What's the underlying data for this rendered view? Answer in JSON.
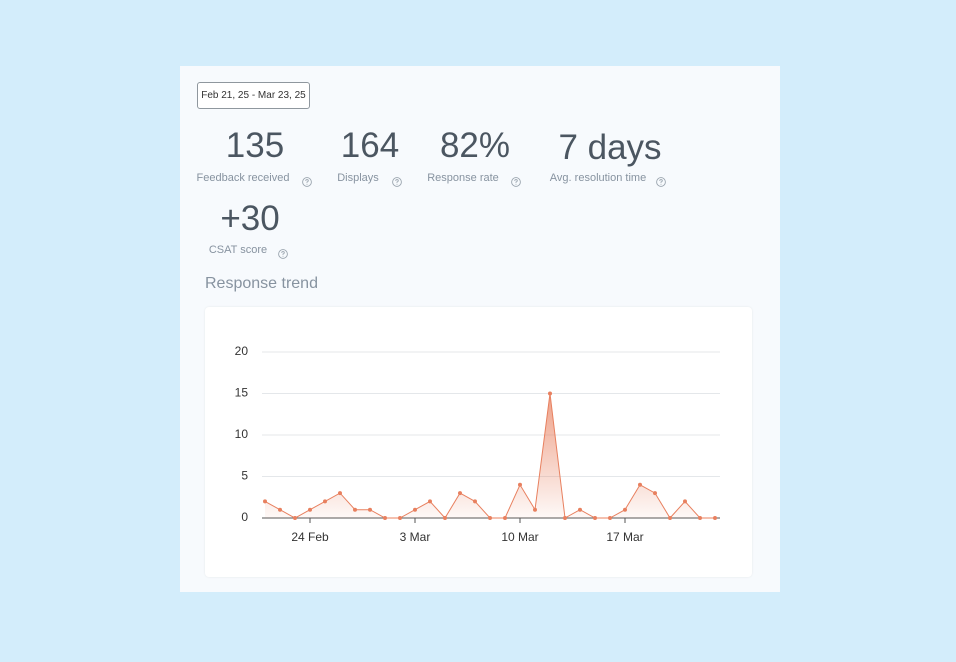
{
  "date_range": "Feb 21, 25 - Mar 23, 25",
  "metrics": [
    {
      "value": "135",
      "label": "Feedback received"
    },
    {
      "value": "164",
      "label": "Displays"
    },
    {
      "value": "82%",
      "label": "Response rate"
    },
    {
      "value": "7 days",
      "label": "Avg. resolution time"
    },
    {
      "value": "+30",
      "label": "CSAT score"
    }
  ],
  "chart_data": {
    "type": "area",
    "title": "Response trend",
    "categories": [
      null,
      null,
      null,
      "24 Feb",
      null,
      null,
      null,
      null,
      null,
      null,
      "3 Mar",
      null,
      null,
      null,
      null,
      null,
      null,
      "10 Mar",
      null,
      null,
      null,
      null,
      null,
      null,
      "17 Mar",
      null,
      null,
      null,
      null,
      null,
      null
    ],
    "values": [
      2,
      1,
      0,
      1,
      2,
      3,
      1,
      1,
      0,
      0,
      1,
      2,
      0,
      3,
      2,
      0,
      0,
      4,
      1,
      15,
      0,
      1,
      0,
      0,
      1,
      4,
      3,
      0,
      2,
      0,
      0
    ],
    "color": "#e8805f",
    "ylim": [
      0,
      20
    ],
    "yticks": [
      0,
      5,
      10,
      15,
      20
    ],
    "grid": true
  }
}
